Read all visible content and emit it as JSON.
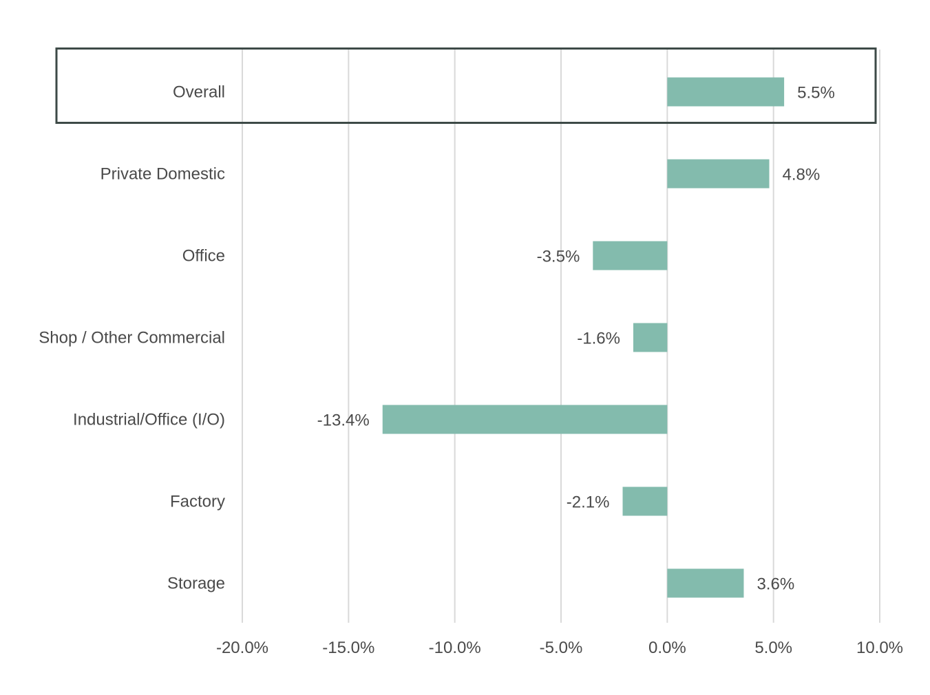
{
  "chart_data": {
    "type": "bar",
    "orientation": "horizontal",
    "categories": [
      "Overall",
      "Private Domestic",
      "Office",
      "Shop / Other Commercial",
      "Industrial/Office (I/O)",
      "Factory",
      "Storage"
    ],
    "values": [
      5.5,
      4.8,
      -3.5,
      -1.6,
      -13.4,
      -2.1,
      3.6
    ],
    "value_labels": [
      "5.5%",
      "4.8%",
      "-3.5%",
      "-1.6%",
      "-13.4%",
      "-2.1%",
      "3.6%"
    ],
    "xlim": [
      -20,
      10
    ],
    "x_ticks": [
      -20,
      -15,
      -10,
      -5,
      0,
      5,
      10
    ],
    "x_tick_labels": [
      "-20.0%",
      "-15.0%",
      "-10.0%",
      "-5.0%",
      "0.0%",
      "5.0%",
      "10.0%"
    ],
    "highlighted_category": "Overall",
    "grid": true,
    "legend": "none",
    "bar_color": "#83bbad",
    "highlight_color": "#3d4a47",
    "grid_color": "#d9d9d9"
  }
}
